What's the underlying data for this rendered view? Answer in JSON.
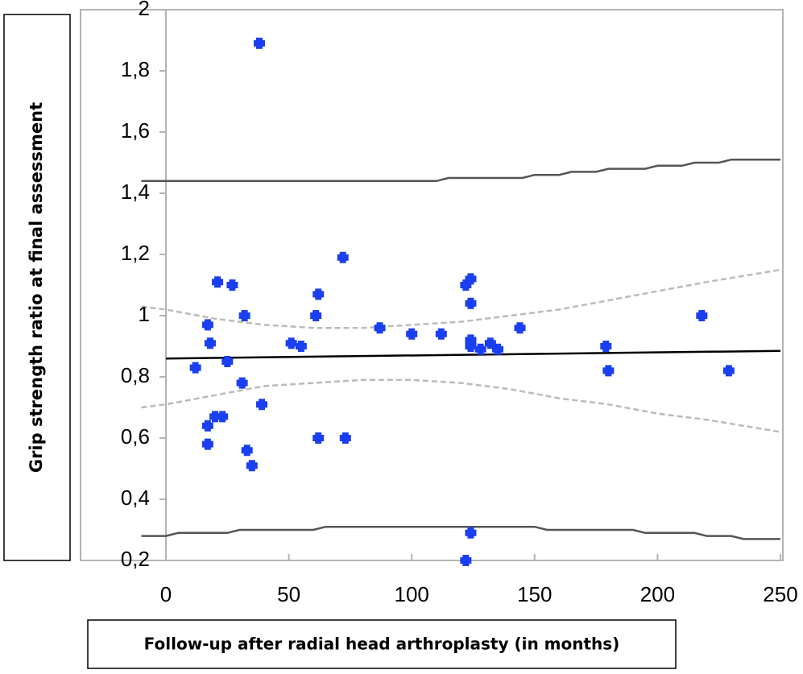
{
  "chart_data": {
    "type": "scatter",
    "title": "",
    "xlabel": "Follow-up after radial head arthroplasty (in months)",
    "ylabel": "Grip strength ratio at final assessment",
    "xlim": [
      0,
      250
    ],
    "ylim": [
      0.2,
      2.0
    ],
    "x_ticks": [
      0,
      50,
      100,
      150,
      200,
      250
    ],
    "x_tick_labels": [
      "0",
      "50",
      "100",
      "150",
      "200",
      "250"
    ],
    "y_ticks": [
      0.2,
      0.4,
      0.6,
      0.8,
      1.0,
      1.2,
      1.4,
      1.6,
      1.8,
      2.0
    ],
    "y_tick_labels": [
      "0,2",
      "0,4",
      "0,6",
      "0,8",
      "1",
      "1,2",
      "1,4",
      "1,6",
      "1,8",
      "2"
    ],
    "grid": false,
    "legend": "none",
    "colors": {
      "points": "#1a3ff0",
      "regression": "#000000",
      "confidence_band": "#bbbbbb",
      "prediction_band": "#555555",
      "frame": "#b3b3b3"
    },
    "points": [
      {
        "x": 12,
        "y": 0.83
      },
      {
        "x": 17,
        "y": 0.97
      },
      {
        "x": 17,
        "y": 0.64
      },
      {
        "x": 17,
        "y": 0.58
      },
      {
        "x": 18,
        "y": 0.91
      },
      {
        "x": 20,
        "y": 0.67
      },
      {
        "x": 21,
        "y": 1.11
      },
      {
        "x": 23,
        "y": 0.67
      },
      {
        "x": 25,
        "y": 0.85
      },
      {
        "x": 27,
        "y": 1.1
      },
      {
        "x": 31,
        "y": 0.78
      },
      {
        "x": 32,
        "y": 1.0
      },
      {
        "x": 33,
        "y": 0.56
      },
      {
        "x": 35,
        "y": 0.51
      },
      {
        "x": 38,
        "y": 1.89
      },
      {
        "x": 39,
        "y": 0.71
      },
      {
        "x": 51,
        "y": 0.91
      },
      {
        "x": 55,
        "y": 0.9
      },
      {
        "x": 61,
        "y": 1.0
      },
      {
        "x": 62,
        "y": 1.07
      },
      {
        "x": 62,
        "y": 0.6
      },
      {
        "x": 72,
        "y": 1.19
      },
      {
        "x": 73,
        "y": 0.6
      },
      {
        "x": 87,
        "y": 0.96
      },
      {
        "x": 100,
        "y": 0.94
      },
      {
        "x": 112,
        "y": 0.94
      },
      {
        "x": 122,
        "y": 1.1
      },
      {
        "x": 122,
        "y": 0.2
      },
      {
        "x": 124,
        "y": 1.12
      },
      {
        "x": 124,
        "y": 1.04
      },
      {
        "x": 124,
        "y": 0.92
      },
      {
        "x": 124,
        "y": 0.9
      },
      {
        "x": 124,
        "y": 0.29
      },
      {
        "x": 128,
        "y": 0.89
      },
      {
        "x": 132,
        "y": 0.91
      },
      {
        "x": 135,
        "y": 0.89
      },
      {
        "x": 144,
        "y": 0.96
      },
      {
        "x": 179,
        "y": 0.9
      },
      {
        "x": 180,
        "y": 0.82
      },
      {
        "x": 218,
        "y": 1.0
      },
      {
        "x": 229,
        "y": 0.82
      }
    ],
    "regression_line": {
      "x": [
        0,
        250
      ],
      "y": [
        0.86,
        0.885
      ]
    },
    "confidence_upper": {
      "x": [
        -10,
        0,
        20,
        40,
        60,
        80,
        100,
        120,
        140,
        160,
        180,
        200,
        220,
        250
      ],
      "y": [
        1.03,
        1.02,
        0.99,
        0.97,
        0.96,
        0.96,
        0.97,
        0.98,
        1.0,
        1.02,
        1.05,
        1.08,
        1.11,
        1.15
      ]
    },
    "confidence_lower": {
      "x": [
        -10,
        0,
        20,
        40,
        60,
        80,
        100,
        120,
        140,
        160,
        180,
        200,
        220,
        250
      ],
      "y": [
        0.7,
        0.71,
        0.74,
        0.77,
        0.78,
        0.79,
        0.79,
        0.78,
        0.76,
        0.73,
        0.71,
        0.68,
        0.66,
        0.62
      ]
    },
    "prediction_upper": {
      "x": [
        -10,
        110,
        115,
        145,
        150,
        160,
        165,
        175,
        180,
        195,
        200,
        210,
        215,
        225,
        230,
        250
      ],
      "y": [
        1.44,
        1.44,
        1.45,
        1.45,
        1.46,
        1.46,
        1.47,
        1.47,
        1.48,
        1.48,
        1.49,
        1.49,
        1.5,
        1.5,
        1.51,
        1.51
      ]
    },
    "prediction_lower": {
      "x": [
        -10,
        0,
        5,
        25,
        30,
        60,
        65,
        150,
        155,
        190,
        195,
        215,
        220,
        230,
        235,
        250
      ],
      "y": [
        0.28,
        0.28,
        0.29,
        0.29,
        0.3,
        0.3,
        0.31,
        0.31,
        0.3,
        0.3,
        0.29,
        0.29,
        0.28,
        0.28,
        0.27,
        0.27
      ]
    }
  }
}
